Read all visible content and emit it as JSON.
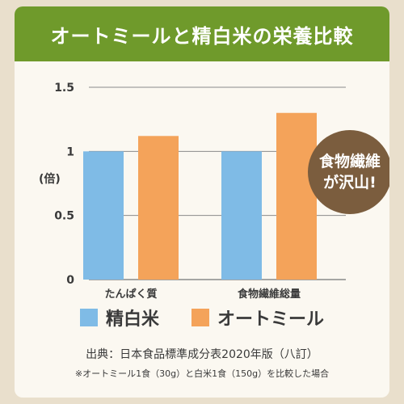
{
  "header": {
    "title": "オートミールと精白米の栄養比較"
  },
  "badge": {
    "line1": "食物繊維",
    "line2": "が沢山!"
  },
  "footer": {
    "source": "出典：日本食品標準成分表2020年版（八訂）",
    "note": "※オートミール1食（30g）と白米1食（150g）を比較した場合"
  },
  "colors": {
    "header": "#6f9a2b",
    "rice": "#7fbbe6",
    "oatmeal": "#f4a35a",
    "badge": "#7b5d3e"
  },
  "chart_data": {
    "type": "bar",
    "categories": [
      "たんぱく質",
      "食物繊維総量"
    ],
    "series": [
      {
        "name": "精白米",
        "values": [
          1.0,
          1.0
        ],
        "color": "#7fbbe6"
      },
      {
        "name": "オートミール",
        "values": [
          1.12,
          1.3
        ],
        "color": "#f4a35a"
      }
    ],
    "ylabel": "(倍)",
    "ylim": [
      0,
      1.5
    ],
    "yticks": [
      0,
      0.5,
      1,
      1.5
    ],
    "ytick_labels": [
      "0",
      "0.5",
      "1",
      "1.5"
    ],
    "grid": true,
    "legend": "bottom"
  }
}
